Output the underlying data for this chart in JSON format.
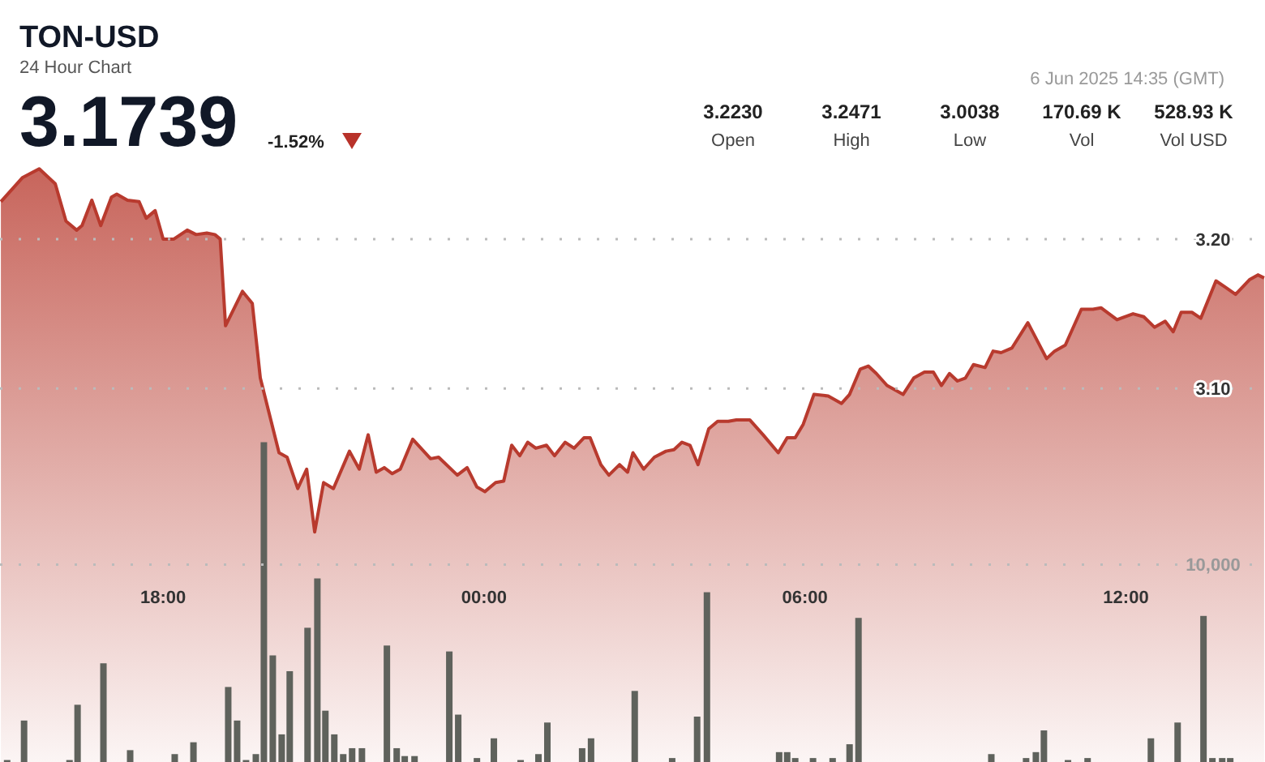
{
  "chart_data": {
    "type": "area",
    "title": "TON-USD",
    "subtitle": "24 Hour Chart",
    "annotations": [
      "3.1739",
      "-1.52%",
      "6 Jun 2025 14:35 (GMT)",
      "3.2230",
      "Open",
      "3.2471",
      "High",
      "3.0038",
      "Low",
      "170.69 K",
      "Vol",
      "528.93 K",
      "Vol USD"
    ],
    "xlim": [
      "2025-06-05T14:57",
      "2025-06-06T14:36"
    ],
    "xticks": [
      {
        "value": "2025-06-05T18:00",
        "label": "18:00"
      },
      {
        "value": "2025-06-06T00:00",
        "label": "00:00"
      },
      {
        "value": "2025-06-06T06:00",
        "label": "06:00"
      },
      {
        "value": "2025-06-06T12:00",
        "label": "12:00"
      }
    ],
    "ylim": [
      2.85,
      3.36
    ],
    "yticks": [
      {
        "value": 3.1,
        "label": "3.10"
      },
      {
        "value": 3.2,
        "label": "3.20"
      }
    ],
    "y2lim": [
      0,
      38600
    ],
    "y2ticks": [
      {
        "value": 10000,
        "label": "10,000"
      }
    ],
    "grid": "y",
    "series": [
      {
        "color": "#b83a2e",
        "x": [
          "2025-06-05T14:58",
          "2025-06-05T15:22",
          "2025-06-05T15:41",
          "2025-06-05T15:59",
          "2025-06-05T16:11",
          "2025-06-05T16:23",
          "2025-06-05T16:29",
          "2025-06-05T16:40",
          "2025-06-05T16:50",
          "2025-06-05T17:02",
          "2025-06-05T17:08",
          "2025-06-05T17:20",
          "2025-06-05T17:33",
          "2025-06-05T17:41",
          "2025-06-05T17:51",
          "2025-06-05T18:00",
          "2025-06-05T18:12",
          "2025-06-05T18:27",
          "2025-06-05T18:37",
          "2025-06-05T18:49",
          "2025-06-05T18:58",
          "2025-06-05T19:04",
          "2025-06-05T19:10",
          "2025-06-05T19:29",
          "2025-06-05T19:40",
          "2025-06-05T19:49",
          "2025-06-05T20:10",
          "2025-06-05T20:19",
          "2025-06-05T20:31",
          "2025-06-05T20:41",
          "2025-06-05T20:50",
          "2025-06-05T21:00",
          "2025-06-05T21:11",
          "2025-06-05T21:29",
          "2025-06-05T21:40",
          "2025-06-05T21:50",
          "2025-06-05T21:59",
          "2025-06-05T22:08",
          "2025-06-05T22:17",
          "2025-06-05T22:26",
          "2025-06-05T22:40",
          "2025-06-05T23:00",
          "2025-06-05T23:09",
          "2025-06-05T23:30",
          "2025-06-05T23:41",
          "2025-06-05T23:52",
          "2025-06-06T00:01",
          "2025-06-06T00:13",
          "2025-06-06T00:22",
          "2025-06-06T00:31",
          "2025-06-06T00:40",
          "2025-06-06T00:49",
          "2025-06-06T00:58",
          "2025-06-06T01:10",
          "2025-06-06T01:19",
          "2025-06-06T01:31",
          "2025-06-06T01:41",
          "2025-06-06T01:52",
          "2025-06-06T01:59",
          "2025-06-06T02:11",
          "2025-06-06T02:20",
          "2025-06-06T02:32",
          "2025-06-06T02:41",
          "2025-06-06T02:47",
          "2025-06-06T02:59",
          "2025-06-06T03:11",
          "2025-06-06T03:24",
          "2025-06-06T03:33",
          "2025-06-06T03:42",
          "2025-06-06T03:51",
          "2025-06-06T04:00",
          "2025-06-06T04:12",
          "2025-06-06T04:22",
          "2025-06-06T04:34",
          "2025-06-06T04:43",
          "2025-06-06T04:58",
          "2025-06-06T05:13",
          "2025-06-06T05:30",
          "2025-06-06T05:40",
          "2025-06-06T05:49",
          "2025-06-06T05:58",
          "2025-06-06T06:10",
          "2025-06-06T06:26",
          "2025-06-06T06:41",
          "2025-06-06T06:50",
          "2025-06-06T07:02",
          "2025-06-06T07:11",
          "2025-06-06T07:20",
          "2025-06-06T07:32",
          "2025-06-06T07:50",
          "2025-06-06T08:02",
          "2025-06-06T08:14",
          "2025-06-06T08:24",
          "2025-06-06T08:33",
          "2025-06-06T08:42",
          "2025-06-06T08:51",
          "2025-06-06T09:00",
          "2025-06-06T09:09",
          "2025-06-06T09:22",
          "2025-06-06T09:31",
          "2025-06-06T09:40",
          "2025-06-06T09:52",
          "2025-06-06T10:10",
          "2025-06-06T10:31",
          "2025-06-06T10:40",
          "2025-06-06T10:52",
          "2025-06-06T11:10",
          "2025-06-06T11:23",
          "2025-06-06T11:32",
          "2025-06-06T11:50",
          "2025-06-06T12:08",
          "2025-06-06T12:20",
          "2025-06-06T12:32",
          "2025-06-06T12:44",
          "2025-06-06T12:53",
          "2025-06-06T13:02",
          "2025-06-06T13:14",
          "2025-06-06T13:24",
          "2025-06-06T13:41",
          "2025-06-06T13:51",
          "2025-06-06T14:03",
          "2025-06-06T14:19",
          "2025-06-06T14:28",
          "2025-06-06T14:35"
        ],
        "values": [
          3.225,
          3.241,
          3.247,
          3.237,
          3.212,
          3.206,
          3.209,
          3.226,
          3.209,
          3.228,
          3.23,
          3.226,
          3.225,
          3.214,
          3.219,
          3.2,
          3.2,
          3.206,
          3.203,
          3.204,
          3.203,
          3.2,
          3.142,
          3.165,
          3.157,
          3.107,
          3.057,
          3.054,
          3.033,
          3.046,
          3.004,
          3.037,
          3.033,
          3.058,
          3.046,
          3.069,
          3.044,
          3.047,
          3.043,
          3.046,
          3.066,
          3.053,
          3.054,
          3.042,
          3.047,
          3.034,
          3.031,
          3.037,
          3.038,
          3.062,
          3.055,
          3.064,
          3.06,
          3.062,
          3.055,
          3.064,
          3.06,
          3.067,
          3.067,
          3.049,
          3.042,
          3.049,
          3.044,
          3.057,
          3.046,
          3.054,
          3.058,
          3.059,
          3.064,
          3.062,
          3.049,
          3.073,
          3.078,
          3.078,
          3.079,
          3.079,
          3.069,
          3.057,
          3.067,
          3.067,
          3.076,
          3.096,
          3.095,
          3.09,
          3.096,
          3.113,
          3.115,
          3.11,
          3.102,
          3.096,
          3.107,
          3.111,
          3.111,
          3.102,
          3.11,
          3.105,
          3.107,
          3.116,
          3.114,
          3.125,
          3.124,
          3.127,
          3.144,
          3.12,
          3.125,
          3.129,
          3.153,
          3.153,
          3.154,
          3.146,
          3.15,
          3.148,
          3.141,
          3.145,
          3.138,
          3.151,
          3.151,
          3.147,
          3.172,
          3.168,
          3.163,
          3.173,
          3.176,
          3.174
        ]
      },
      {
        "type": "bar",
        "axis": "y2",
        "color": "#5f625c",
        "x": [
          "2025-06-05T15:05",
          "2025-06-05T15:24",
          "2025-06-05T16:15",
          "2025-06-05T16:24",
          "2025-06-05T16:53",
          "2025-06-05T17:23",
          "2025-06-05T18:13",
          "2025-06-05T18:34",
          "2025-06-05T19:13",
          "2025-06-05T19:23",
          "2025-06-05T19:33",
          "2025-06-05T19:44",
          "2025-06-05T19:53",
          "2025-06-05T20:03",
          "2025-06-05T20:13",
          "2025-06-05T20:22",
          "2025-06-05T20:42",
          "2025-06-05T20:53",
          "2025-06-05T21:02",
          "2025-06-05T21:12",
          "2025-06-05T21:22",
          "2025-06-05T21:32",
          "2025-06-05T21:43",
          "2025-06-05T22:11",
          "2025-06-05T22:22",
          "2025-06-05T22:31",
          "2025-06-05T22:42",
          "2025-06-05T23:21",
          "2025-06-05T23:31",
          "2025-06-05T23:52",
          "2025-06-06T00:11",
          "2025-06-06T00:41",
          "2025-06-06T01:01",
          "2025-06-06T01:11",
          "2025-06-06T01:50",
          "2025-06-06T02:00",
          "2025-06-06T02:49",
          "2025-06-06T03:31",
          "2025-06-06T03:59",
          "2025-06-06T04:10",
          "2025-06-06T05:31",
          "2025-06-06T05:40",
          "2025-06-06T05:49",
          "2025-06-06T06:09",
          "2025-06-06T06:31",
          "2025-06-06T06:50",
          "2025-06-06T07:00",
          "2025-06-06T09:29",
          "2025-06-06T10:08",
          "2025-06-06T10:19",
          "2025-06-06T10:28",
          "2025-06-06T10:55",
          "2025-06-06T11:17",
          "2025-06-06T12:28",
          "2025-06-06T12:58",
          "2025-06-06T13:27",
          "2025-06-06T13:37",
          "2025-06-06T13:48",
          "2025-06-06T13:57"
        ],
        "values": [
          100,
          2100,
          100,
          2900,
          5000,
          600,
          400,
          1000,
          3800,
          2100,
          100,
          400,
          16200,
          5400,
          1400,
          4600,
          6800,
          9300,
          2600,
          1400,
          400,
          700,
          700,
          5900,
          700,
          300,
          300,
          5600,
          2400,
          200,
          1200,
          100,
          400,
          2000,
          700,
          1200,
          3600,
          200,
          2300,
          8600,
          500,
          500,
          200,
          200,
          200,
          900,
          7300,
          400,
          200,
          500,
          1600,
          100,
          200,
          1200,
          2000,
          7400,
          200,
          200,
          200
        ]
      }
    ]
  }
}
